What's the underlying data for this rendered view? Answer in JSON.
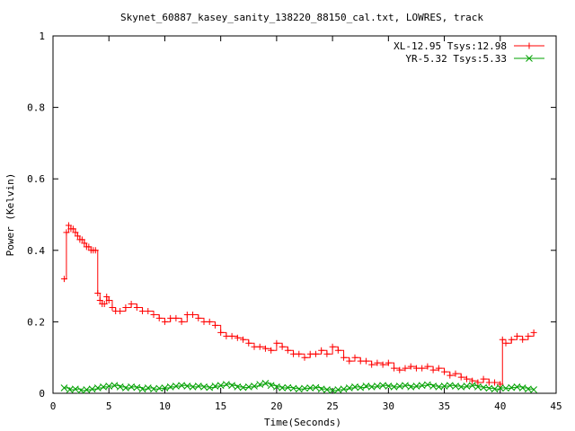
{
  "chart_data": {
    "type": "line",
    "title": "Skynet_60887_kasey_sanity_138220_88150_cal.txt, LOWRES, track",
    "xlabel": "Time(Seconds)",
    "ylabel": "Power (Kelvin)",
    "xlim": [
      0,
      45
    ],
    "ylim": [
      0,
      1
    ],
    "xticks": [
      0,
      5,
      10,
      15,
      20,
      25,
      30,
      35,
      40,
      45
    ],
    "yticks": [
      0,
      0.2,
      0.4,
      0.6,
      0.8,
      1
    ],
    "ytick_labels": [
      "0",
      "0.2",
      "0.4",
      "0.6",
      "0.8",
      "1"
    ],
    "legend_position": "top-right",
    "grid": false,
    "series": [
      {
        "name": "XL-12.95 Tsys:12.98",
        "color": "#ff0000",
        "marker": "plus",
        "x": [
          1.0,
          1.2,
          1.4,
          1.6,
          1.8,
          2.0,
          2.2,
          2.4,
          2.6,
          2.8,
          3.0,
          3.2,
          3.4,
          3.6,
          3.8,
          4.0,
          4.2,
          4.4,
          4.6,
          4.8,
          5.0,
          5.3,
          5.6,
          6.0,
          6.5,
          7.0,
          7.5,
          8.0,
          8.5,
          9.0,
          9.5,
          10.0,
          10.5,
          11.0,
          11.5,
          12.0,
          12.5,
          13.0,
          13.5,
          14.0,
          14.5,
          15.0,
          15.5,
          16.0,
          16.5,
          17.0,
          17.5,
          18.0,
          18.5,
          19.0,
          19.5,
          20.0,
          20.5,
          21.0,
          21.5,
          22.0,
          22.5,
          23.0,
          23.5,
          24.0,
          24.5,
          25.0,
          25.5,
          26.0,
          26.5,
          27.0,
          27.5,
          28.0,
          28.5,
          29.0,
          29.5,
          30.0,
          30.5,
          31.0,
          31.5,
          32.0,
          32.5,
          33.0,
          33.5,
          34.0,
          34.5,
          35.0,
          35.5,
          36.0,
          36.5,
          37.0,
          37.5,
          38.0,
          38.5,
          39.0,
          39.5,
          40.0,
          40.2,
          40.5,
          41.0,
          41.5,
          42.0,
          42.5,
          43.0
        ],
        "y": [
          0.32,
          0.45,
          0.47,
          0.46,
          0.46,
          0.45,
          0.44,
          0.43,
          0.43,
          0.42,
          0.41,
          0.41,
          0.4,
          0.4,
          0.4,
          0.28,
          0.26,
          0.25,
          0.25,
          0.27,
          0.26,
          0.24,
          0.23,
          0.23,
          0.24,
          0.25,
          0.24,
          0.23,
          0.23,
          0.22,
          0.21,
          0.2,
          0.21,
          0.21,
          0.2,
          0.22,
          0.22,
          0.21,
          0.2,
          0.2,
          0.19,
          0.17,
          0.16,
          0.16,
          0.155,
          0.15,
          0.14,
          0.13,
          0.13,
          0.125,
          0.12,
          0.14,
          0.13,
          0.12,
          0.11,
          0.11,
          0.1,
          0.11,
          0.11,
          0.12,
          0.11,
          0.13,
          0.12,
          0.1,
          0.09,
          0.1,
          0.09,
          0.09,
          0.08,
          0.085,
          0.08,
          0.085,
          0.07,
          0.065,
          0.07,
          0.075,
          0.07,
          0.07,
          0.075,
          0.065,
          0.07,
          0.06,
          0.05,
          0.055,
          0.045,
          0.04,
          0.035,
          0.03,
          0.04,
          0.03,
          0.03,
          0.025,
          0.15,
          0.14,
          0.15,
          0.16,
          0.15,
          0.16,
          0.17
        ]
      },
      {
        "name": "YR-5.32 Tsys:5.33",
        "color": "#00a000",
        "marker": "cross",
        "x": [
          1.0,
          1.5,
          2.0,
          2.5,
          3.0,
          3.5,
          4.0,
          4.5,
          5.0,
          5.5,
          6.0,
          6.5,
          7.0,
          7.5,
          8.0,
          8.5,
          9.0,
          9.5,
          10.0,
          10.5,
          11.0,
          11.5,
          12.0,
          12.5,
          13.0,
          13.5,
          14.0,
          14.5,
          15.0,
          15.5,
          16.0,
          16.5,
          17.0,
          17.5,
          18.0,
          18.5,
          19.0,
          19.5,
          20.0,
          20.5,
          21.0,
          21.5,
          22.0,
          22.5,
          23.0,
          23.5,
          24.0,
          24.5,
          25.0,
          25.5,
          26.0,
          26.5,
          27.0,
          27.5,
          28.0,
          28.5,
          29.0,
          29.5,
          30.0,
          30.5,
          31.0,
          31.5,
          32.0,
          32.5,
          33.0,
          33.5,
          34.0,
          34.5,
          35.0,
          35.5,
          36.0,
          36.5,
          37.0,
          37.5,
          38.0,
          38.5,
          39.0,
          39.5,
          40.0,
          40.5,
          41.0,
          41.5,
          42.0,
          42.5,
          43.0
        ],
        "y": [
          0.015,
          0.01,
          0.012,
          0.008,
          0.01,
          0.012,
          0.015,
          0.018,
          0.02,
          0.022,
          0.018,
          0.015,
          0.018,
          0.016,
          0.012,
          0.015,
          0.012,
          0.014,
          0.015,
          0.018,
          0.02,
          0.022,
          0.02,
          0.018,
          0.02,
          0.018,
          0.016,
          0.02,
          0.022,
          0.025,
          0.022,
          0.018,
          0.016,
          0.018,
          0.02,
          0.025,
          0.028,
          0.022,
          0.018,
          0.015,
          0.016,
          0.014,
          0.012,
          0.014,
          0.015,
          0.016,
          0.012,
          0.01,
          0.008,
          0.01,
          0.012,
          0.015,
          0.018,
          0.016,
          0.02,
          0.018,
          0.02,
          0.022,
          0.02,
          0.018,
          0.02,
          0.022,
          0.018,
          0.02,
          0.022,
          0.024,
          0.02,
          0.018,
          0.02,
          0.022,
          0.02,
          0.018,
          0.02,
          0.022,
          0.018,
          0.016,
          0.014,
          0.012,
          0.015,
          0.014,
          0.016,
          0.018,
          0.015,
          0.012,
          0.01
        ]
      }
    ]
  }
}
